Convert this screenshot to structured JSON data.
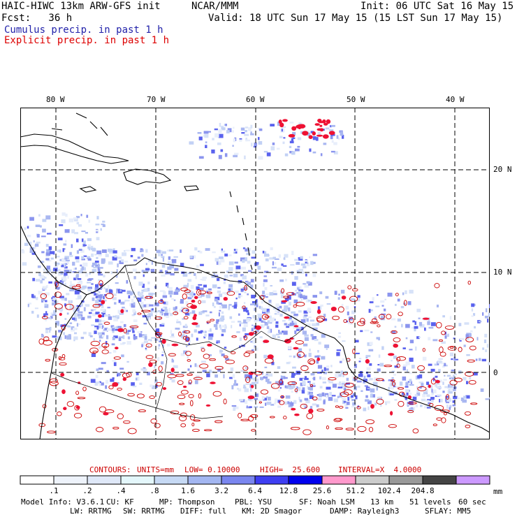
{
  "header": {
    "model": "HAIC-HIWC 13km ARW-GFS init",
    "source": "NCAR/MMM",
    "init": "Init: 06 UTC Sat 16 May 15",
    "fcst": "Fcst:   36 h",
    "valid": "Valid: 18 UTC Sun 17 May 15 (15 LST Sun 17 May 15)",
    "cumulus_label": "Cumulus precip. in past 1 h",
    "explicit_label": "Explicit precip. in past 1 h"
  },
  "colors": {
    "cumulus": "#3333aa",
    "explicit": "#dd0000",
    "contour": "#cc0000",
    "coast": "#000000",
    "grid": "#000000"
  },
  "map": {
    "lon_labels": [
      "80 W",
      "70 W",
      "60 W",
      "50 W",
      "40 W"
    ],
    "lat_labels": [
      "20 N",
      "10 N",
      "0"
    ]
  },
  "contour_info": {
    "contours": "CONTOURS:",
    "units": "UNITS=mm",
    "low": "LOW= 0.10000",
    "high": "HIGH=  25.600",
    "interval": "INTERVAL=X  4.0000"
  },
  "colorbar": {
    "unit": "mm",
    "ticks": [
      ".1",
      ".2",
      ".4",
      ".8",
      "1.6",
      "3.2",
      "6.4",
      "12.8",
      "25.6",
      "51.2",
      "102.4",
      "204.8"
    ],
    "colors": [
      "#ffffff",
      "#eef3fb",
      "#dfe8f8",
      "#e4f7fb",
      "#c6d9f4",
      "#a3b6f1",
      "#7a86ef",
      "#3e3ef2",
      "#0000ee",
      "#ff99cc",
      "#cccccc",
      "#999999",
      "#444444",
      "#cc99ff"
    ]
  },
  "footer": {
    "line1": [
      "Model Info: V3.6.1",
      "CU: KF",
      "MP: Thompson",
      "PBL: YSU",
      "SF: Noah LSM",
      "13 km",
      "51 levels",
      "60 sec"
    ],
    "line2": [
      "LW: RRTMG",
      "SW: RRTMG",
      "DIFF: full",
      "KM: 2D Smagor",
      "DAMP: Rayleigh3",
      "SFLAY: MM5"
    ]
  }
}
